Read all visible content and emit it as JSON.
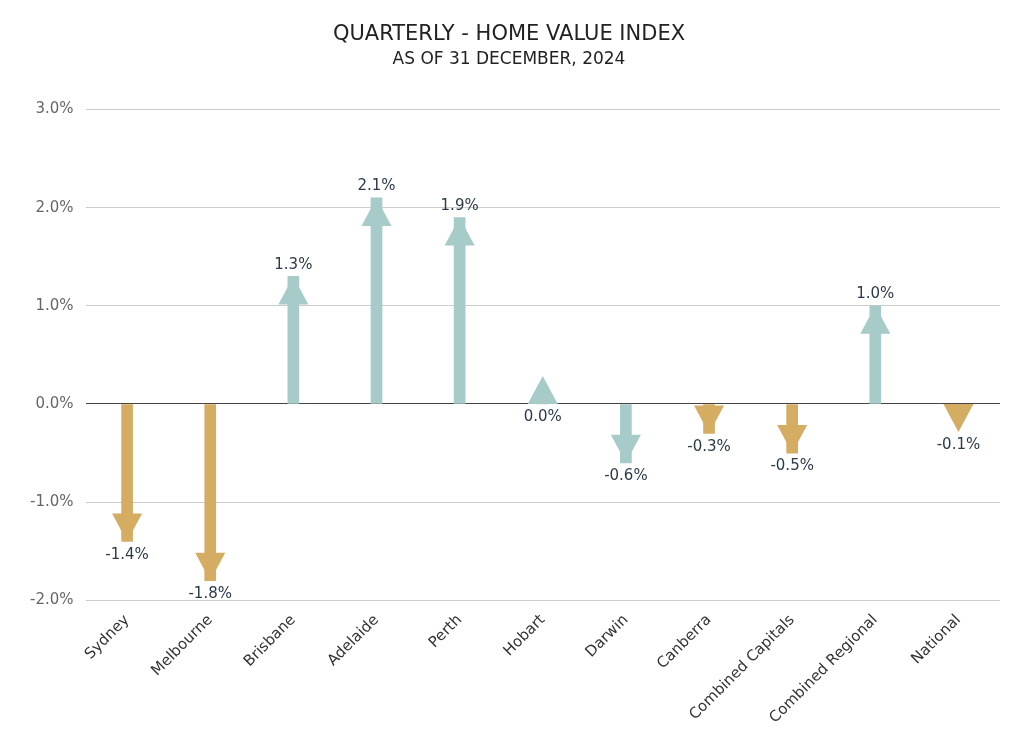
{
  "chart_data": {
    "type": "bar",
    "title": "QUARTERLY - HOME VALUE INDEX",
    "subtitle": "AS OF 31 DECEMBER, 2024",
    "categories": [
      "Sydney",
      "Melbourne",
      "Brisbane",
      "Adelaide",
      "Perth",
      "Hobart",
      "Darwin",
      "Canberra",
      "Combined Capitals",
      "Combined Regional",
      "National"
    ],
    "values": [
      -1.4,
      -1.8,
      1.3,
      2.1,
      1.9,
      0.0,
      -0.6,
      -0.3,
      -0.5,
      1.0,
      -0.1
    ],
    "value_labels": [
      "-1.4%",
      "-1.8%",
      "1.3%",
      "2.1%",
      "1.9%",
      "0.0%",
      "-0.6%",
      "-0.3%",
      "-0.5%",
      "1.0%",
      "-0.1%"
    ],
    "colors": [
      "#d4ad62",
      "#d4ad62",
      "#a6cbc9",
      "#a6cbc9",
      "#a6cbc9",
      "#a6cbc9",
      "#a6cbc9",
      "#d4ad62",
      "#d4ad62",
      "#a6cbc9",
      "#d4ad62"
    ],
    "ylim": [
      -2,
      3
    ],
    "yticks": [
      {
        "value": -2,
        "label": "-2.0%"
      },
      {
        "value": -1,
        "label": "-1.0%"
      },
      {
        "value": 0,
        "label": "0.0%"
      },
      {
        "value": 1,
        "label": "1.0%"
      },
      {
        "value": 2,
        "label": "2.0%"
      },
      {
        "value": 3,
        "label": "3.0%"
      }
    ],
    "grid": true,
    "data_labels": true,
    "marker": "arrow"
  }
}
